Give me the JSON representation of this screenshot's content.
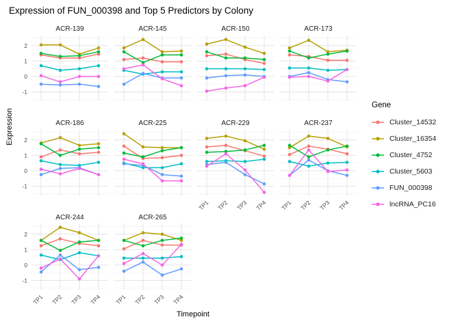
{
  "title": "Expression of FUN_000398 and Top 5 Predictors by Colony",
  "chart_data": {
    "type": "line",
    "title": "Expression of FUN_000398 and Top 5 Predictors by Colony",
    "xlabel": "Timepoint",
    "ylabel": "Expression",
    "x": [
      "TP1",
      "TP2",
      "TP3",
      "TP4"
    ],
    "ylim": [
      -1.6,
      2.7
    ],
    "y_major_ticks": [
      2,
      1,
      0,
      -1
    ],
    "y_minor_ticks": [
      2.5,
      1.5,
      0.5,
      -0.5,
      -1.5
    ],
    "grid": true,
    "legend_title": "Gene",
    "legend_position": "right",
    "series": [
      {
        "name": "Cluster_14532",
        "color": "#F8766D"
      },
      {
        "name": "Cluster_16354",
        "color": "#B79F00"
      },
      {
        "name": "Cluster_4752",
        "color": "#00BA38"
      },
      {
        "name": "Cluster_5603",
        "color": "#00BFC4"
      },
      {
        "name": "FUN_000398",
        "color": "#619CFF"
      },
      {
        "name": "lncRNA_PC16",
        "color": "#F564E3"
      }
    ],
    "facets": [
      {
        "colony": "ACR-139",
        "show_y_ticks": true,
        "show_x_ticks": false,
        "values": {
          "Cluster_14532": [
            1.4,
            1.2,
            1.2,
            1.45
          ],
          "Cluster_16354": [
            2.05,
            2.05,
            1.45,
            1.85
          ],
          "Cluster_4752": [
            1.5,
            1.3,
            1.35,
            1.6
          ],
          "Cluster_5603": [
            0.7,
            0.4,
            0.5,
            0.7
          ],
          "FUN_000398": [
            -0.5,
            -0.55,
            -0.5,
            -0.65
          ],
          "lncRNA_PC16": [
            0.05,
            -0.35,
            0.0,
            0.0
          ]
        }
      },
      {
        "colony": "ACR-145",
        "show_y_ticks": false,
        "show_x_ticks": false,
        "values": {
          "Cluster_14532": [
            1.1,
            1.2,
            0.95,
            0.95
          ],
          "Cluster_16354": [
            1.85,
            2.4,
            1.6,
            1.65
          ],
          "Cluster_4752": [
            1.6,
            0.9,
            1.4,
            1.4
          ],
          "Cluster_5603": [
            0.4,
            0.15,
            0.3,
            0.3
          ],
          "FUN_000398": [
            -0.5,
            0.2,
            -0.1,
            -0.1
          ],
          "lncRNA_PC16": [
            0.5,
            0.75,
            -0.15,
            -0.6
          ]
        }
      },
      {
        "colony": "ACR-150",
        "show_y_ticks": false,
        "show_x_ticks": false,
        "values": {
          "Cluster_14532": [
            1.35,
            1.45,
            1.1,
            0.85
          ],
          "Cluster_16354": [
            2.1,
            2.4,
            1.9,
            1.5
          ],
          "Cluster_4752": [
            1.6,
            1.2,
            1.2,
            1.1
          ],
          "Cluster_5603": [
            0.5,
            0.5,
            0.5,
            0.45
          ],
          "FUN_000398": [
            -0.1,
            0.05,
            0.1,
            0.0
          ],
          "lncRNA_PC16": [
            -0.95,
            -0.75,
            -0.6,
            -0.05
          ]
        }
      },
      {
        "colony": "ACR-173",
        "show_y_ticks": false,
        "show_x_ticks": false,
        "values": {
          "Cluster_14532": [
            1.4,
            1.3,
            1.05,
            1.05
          ],
          "Cluster_16354": [
            1.85,
            2.35,
            1.6,
            1.7
          ],
          "Cluster_4752": [
            1.65,
            1.2,
            1.45,
            1.65
          ],
          "Cluster_5603": [
            0.55,
            0.55,
            0.4,
            0.45
          ],
          "FUN_000398": [
            0.0,
            0.25,
            -0.2,
            -0.35
          ],
          "lncRNA_PC16": [
            -0.05,
            0.0,
            -0.3,
            0.45
          ]
        }
      },
      {
        "colony": "ACR-186",
        "show_y_ticks": true,
        "show_x_ticks": false,
        "values": {
          "Cluster_14532": [
            0.9,
            1.35,
            1.1,
            1.2
          ],
          "Cluster_16354": [
            1.8,
            2.15,
            1.65,
            1.75
          ],
          "Cluster_4752": [
            1.75,
            1.0,
            1.4,
            1.5
          ],
          "Cluster_5603": [
            0.65,
            0.4,
            0.35,
            0.55
          ],
          "FUN_000398": [
            -0.25,
            0.15,
            0.2,
            -0.25
          ],
          "lncRNA_PC16": [
            0.1,
            -0.2,
            0.15,
            -0.25
          ]
        }
      },
      {
        "colony": "ACR-225",
        "show_y_ticks": false,
        "show_x_ticks": false,
        "values": {
          "Cluster_14532": [
            1.6,
            0.8,
            0.85,
            1.0
          ],
          "Cluster_16354": [
            2.4,
            1.55,
            1.5,
            1.5
          ],
          "Cluster_4752": [
            1.15,
            0.9,
            1.3,
            1.5
          ],
          "Cluster_5603": [
            0.5,
            0.2,
            0.2,
            0.45
          ],
          "FUN_000398": [
            0.45,
            0.35,
            -0.25,
            -0.35
          ],
          "lncRNA_PC16": [
            0.75,
            0.45,
            -0.65,
            -0.65
          ]
        }
      },
      {
        "colony": "ACR-229",
        "show_y_ticks": false,
        "show_x_ticks": true,
        "values": {
          "Cluster_14532": [
            1.55,
            1.65,
            1.3,
            0.95
          ],
          "Cluster_16354": [
            2.1,
            2.25,
            1.95,
            1.4
          ],
          "Cluster_4752": [
            1.2,
            1.25,
            1.35,
            1.65
          ],
          "Cluster_5603": [
            0.6,
            0.65,
            0.6,
            0.75
          ],
          "FUN_000398": [
            0.4,
            0.55,
            -0.25,
            -0.85
          ],
          "lncRNA_PC16": [
            0.3,
            1.1,
            0.05,
            -1.4
          ]
        }
      },
      {
        "colony": "ACR-237",
        "show_y_ticks": false,
        "show_x_ticks": true,
        "values": {
          "Cluster_14532": [
            1.05,
            1.6,
            1.4,
            1.1
          ],
          "Cluster_16354": [
            1.5,
            2.25,
            2.1,
            1.55
          ],
          "Cluster_4752": [
            1.65,
            0.9,
            1.35,
            1.6
          ],
          "Cluster_5603": [
            0.6,
            0.3,
            0.5,
            0.55
          ],
          "FUN_000398": [
            -0.3,
            0.7,
            0.0,
            -0.3
          ],
          "lncRNA_PC16": [
            -0.3,
            1.35,
            -0.05,
            0.05
          ]
        }
      },
      {
        "colony": "ACR-244",
        "show_y_ticks": true,
        "show_x_ticks": true,
        "values": {
          "Cluster_14532": [
            1.25,
            1.7,
            1.4,
            1.25
          ],
          "Cluster_16354": [
            1.6,
            2.45,
            2.1,
            1.6
          ],
          "Cluster_4752": [
            1.6,
            0.95,
            1.5,
            1.6
          ],
          "Cluster_5603": [
            0.65,
            0.35,
            0.8,
            0.6
          ],
          "FUN_000398": [
            -0.45,
            0.65,
            -0.3,
            -0.15
          ],
          "lncRNA_PC16": [
            -0.2,
            0.4,
            -0.9,
            0.6
          ]
        }
      },
      {
        "colony": "ACR-265",
        "show_y_ticks": false,
        "show_x_ticks": true,
        "values": {
          "Cluster_14532": [
            1.05,
            1.6,
            1.3,
            1.3
          ],
          "Cluster_16354": [
            1.6,
            2.1,
            2.0,
            1.6
          ],
          "Cluster_4752": [
            1.6,
            1.25,
            1.6,
            1.75
          ],
          "Cluster_5603": [
            0.45,
            0.45,
            0.45,
            0.55
          ],
          "FUN_000398": [
            -0.4,
            0.2,
            -0.65,
            -0.25
          ],
          "lncRNA_PC16": [
            0.1,
            0.75,
            0.0,
            1.35
          ]
        }
      }
    ]
  }
}
